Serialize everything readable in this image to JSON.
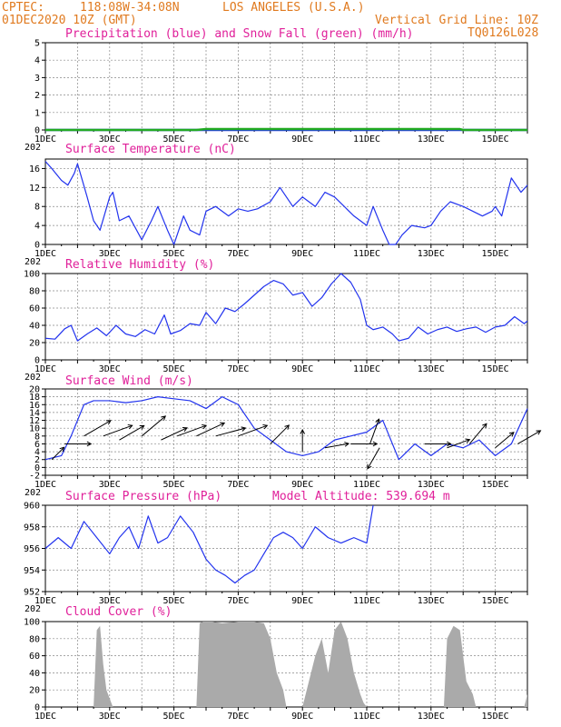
{
  "header": {
    "org": "CPTEC:",
    "coords": "118:08W-34:08N",
    "location": "LOS ANGELES (U.S.A.)",
    "datetime": "01DEC2020 10Z (GMT)",
    "grid_note": "Vertical Grid Line: 10Z",
    "code": "TQ0126L028",
    "model_altitude": "Model Altitude: 539.694 m"
  },
  "colors": {
    "header": "#e07a1f",
    "title": "#e0209a",
    "line": "#2233ee",
    "snow": "#22aa22",
    "cloud": "#aaaaaa"
  },
  "x_labels": [
    "1DEC",
    "3DEC",
    "5DEC",
    "7DEC",
    "9DEC",
    "11DEC",
    "13DEC",
    "15DEC"
  ],
  "x_label_days": [
    1,
    3,
    5,
    7,
    9,
    11,
    13,
    15
  ],
  "year_fragment": "202",
  "chart_data": [
    {
      "type": "line",
      "title": "Precipitation (blue) and Snow Fall (green) (mm/h)",
      "ylim": [
        0,
        5
      ],
      "yticks": [
        0,
        1,
        2,
        3,
        4,
        5
      ],
      "x": [
        1,
        2,
        3,
        4,
        5,
        5.7,
        6,
        7,
        8,
        9,
        10,
        11,
        12,
        13,
        13.9,
        14,
        15,
        16
      ],
      "series": [
        {
          "values": [
            0,
            0,
            0,
            0,
            0,
            0,
            0,
            0,
            0,
            0,
            0,
            0,
            0,
            0,
            0,
            0,
            0,
            0
          ],
          "color": "#2233ee"
        },
        {
          "values": [
            0,
            0,
            0,
            0,
            0,
            0,
            0.05,
            0.05,
            0.05,
            0.05,
            0.05,
            0.05,
            0.05,
            0.05,
            0.05,
            0,
            0,
            0
          ],
          "color": "#22aa22"
        }
      ],
      "grid": true
    },
    {
      "type": "line",
      "title": "Surface Temperature (nC)",
      "ylim": [
        0,
        18
      ],
      "yticks": [
        0,
        4,
        8,
        12,
        16
      ],
      "x": [
        1,
        1.2,
        1.5,
        1.7,
        1.9,
        2.0,
        2.3,
        2.5,
        2.7,
        3.0,
        3.1,
        3.3,
        3.6,
        4.0,
        4.3,
        4.5,
        4.8,
        5.0,
        5.3,
        5.5,
        5.8,
        6.0,
        6.3,
        6.7,
        7.0,
        7.3,
        7.6,
        8.0,
        8.3,
        8.7,
        9.0,
        9.4,
        9.7,
        10.0,
        10.3,
        10.6,
        11.0,
        11.2,
        11.5,
        11.7,
        11.9,
        12.1,
        12.4,
        12.8,
        13.0,
        13.3,
        13.6,
        14.0,
        14.3,
        14.6,
        14.9,
        15.0,
        15.2,
        15.5,
        15.8,
        16.0
      ],
      "series": [
        {
          "values": [
            17.5,
            16,
            13.5,
            12.5,
            15,
            17,
            10,
            5,
            3,
            10,
            11,
            5,
            6,
            1,
            5,
            8,
            3,
            0,
            6,
            3,
            2,
            7,
            8,
            6,
            7.5,
            7,
            7.5,
            9,
            12,
            8,
            10,
            8,
            11,
            10,
            8,
            6,
            4,
            8,
            3,
            0,
            0,
            2,
            4,
            3.5,
            4,
            7,
            9,
            8,
            7,
            6,
            7,
            8,
            6,
            14,
            11,
            12.5
          ],
          "color": "#2233ee"
        }
      ],
      "grid": true
    },
    {
      "type": "line",
      "title": "Relative Humidity (%)",
      "ylim": [
        0,
        100
      ],
      "yticks": [
        0,
        20,
        40,
        60,
        80,
        100
      ],
      "x": [
        1,
        1.3,
        1.6,
        1.8,
        2.0,
        2.3,
        2.6,
        2.9,
        3.2,
        3.5,
        3.8,
        4.1,
        4.4,
        4.7,
        4.9,
        5.2,
        5.5,
        5.8,
        6.0,
        6.3,
        6.6,
        6.9,
        7.2,
        7.5,
        7.8,
        8.1,
        8.4,
        8.7,
        9.0,
        9.3,
        9.6,
        9.9,
        10.2,
        10.5,
        10.8,
        11.0,
        11.2,
        11.5,
        11.8,
        12.0,
        12.3,
        12.6,
        12.9,
        13.2,
        13.5,
        13.8,
        14.1,
        14.4,
        14.7,
        15.0,
        15.3,
        15.6,
        15.9,
        16.0
      ],
      "series": [
        {
          "values": [
            25,
            24,
            36,
            40,
            22,
            30,
            37,
            28,
            40,
            30,
            27,
            35,
            30,
            52,
            30,
            34,
            42,
            40,
            55,
            42,
            60,
            56,
            65,
            75,
            85,
            92,
            88,
            75,
            78,
            62,
            72,
            88,
            100,
            90,
            70,
            40,
            35,
            38,
            30,
            22,
            25,
            38,
            30,
            35,
            38,
            33,
            36,
            38,
            32,
            38,
            40,
            50,
            42,
            45
          ],
          "color": "#2233ee"
        }
      ],
      "grid": true
    },
    {
      "type": "line",
      "title": "Surface Wind (m/s)",
      "ylim": [
        -2,
        20
      ],
      "yticks": [
        -2,
        0,
        2,
        4,
        6,
        8,
        10,
        12,
        14,
        16,
        18,
        20
      ],
      "x": [
        1,
        1.5,
        1.8,
        2.2,
        2.5,
        3,
        3.5,
        4,
        4.5,
        5,
        5.5,
        6,
        6.5,
        7,
        7.5,
        8,
        8.5,
        9,
        9.5,
        10,
        10.5,
        11,
        11.5,
        12,
        12.5,
        13,
        13.5,
        14,
        14.5,
        15,
        15.5,
        16
      ],
      "series": [
        {
          "values": [
            2,
            3,
            8,
            16,
            17,
            17,
            16.5,
            17,
            18,
            17.5,
            17,
            15,
            18,
            16,
            10,
            7,
            4,
            3,
            4,
            7,
            8,
            9,
            12,
            2,
            6,
            3,
            6,
            5,
            7,
            3,
            6,
            15
          ],
          "color": "#2233ee"
        }
      ],
      "grid": true
    },
    {
      "type": "line",
      "title": "Surface Pressure (hPa)",
      "ylim": [
        952,
        960
      ],
      "yticks": [
        952,
        954,
        956,
        958,
        960
      ],
      "x": [
        1,
        1.4,
        1.8,
        2.2,
        2.6,
        3.0,
        3.3,
        3.6,
        3.9,
        4.2,
        4.5,
        4.8,
        5.2,
        5.6,
        6.0,
        6.3,
        6.6,
        6.9,
        7.2,
        7.5,
        7.8,
        8.1,
        8.4,
        8.7,
        9.0,
        9.4,
        9.8,
        10.2,
        10.6,
        11.0,
        11.2
      ],
      "series": [
        {
          "values": [
            956,
            957,
            956,
            958.5,
            957,
            955.5,
            957,
            958,
            956,
            959,
            956.5,
            957,
            959,
            957.5,
            955,
            954,
            953.5,
            952.8,
            953.5,
            954,
            955.5,
            957,
            957.5,
            957,
            956,
            958,
            957,
            956.5,
            957,
            956.5,
            960
          ],
          "color": "#2233ee"
        }
      ],
      "grid": true
    },
    {
      "type": "area",
      "title": "Cloud Cover (%)",
      "ylim": [
        0,
        100
      ],
      "yticks": [
        0,
        20,
        40,
        60,
        80,
        100
      ],
      "x": [
        1,
        2.5,
        2.6,
        2.7,
        2.8,
        2.9,
        3.0,
        3.1,
        3.2,
        5.7,
        5.8,
        5.9,
        6.0,
        6.2,
        6.5,
        7.0,
        7.5,
        7.8,
        8.0,
        8.1,
        8.2,
        8.3,
        8.4,
        8.5,
        8.6,
        8.7,
        9.0,
        9.2,
        9.4,
        9.6,
        9.8,
        10.0,
        10.2,
        10.4,
        10.6,
        10.8,
        10.9,
        11.0,
        13.4,
        13.5,
        13.7,
        13.9,
        14.0,
        14.1,
        14.3,
        14.4,
        15.9,
        16.0
      ],
      "series": [
        {
          "values": [
            0,
            0,
            90,
            95,
            50,
            20,
            10,
            0,
            0,
            0,
            98,
            100,
            100,
            100,
            98,
            100,
            100,
            98,
            80,
            60,
            40,
            30,
            20,
            0,
            0,
            0,
            0,
            30,
            60,
            80,
            40,
            90,
            100,
            80,
            40,
            15,
            5,
            0,
            0,
            80,
            95,
            90,
            60,
            30,
            15,
            0,
            0,
            15
          ],
          "color": "#aaaaaa"
        }
      ],
      "grid": true
    }
  ],
  "wind_barbs": [
    {
      "day": 1.2,
      "speed": 2,
      "dir": 225
    },
    {
      "day": 1.6,
      "speed": 6,
      "dir": 270
    },
    {
      "day": 2.2,
      "speed": 8,
      "dir": 240
    },
    {
      "day": 2.8,
      "speed": 8,
      "dir": 250
    },
    {
      "day": 3.3,
      "speed": 7,
      "dir": 240
    },
    {
      "day": 4.0,
      "speed": 8,
      "dir": 230
    },
    {
      "day": 4.6,
      "speed": 7,
      "dir": 245
    },
    {
      "day": 5.1,
      "speed": 8,
      "dir": 250
    },
    {
      "day": 5.7,
      "speed": 8,
      "dir": 245
    },
    {
      "day": 6.3,
      "speed": 8,
      "dir": 255
    },
    {
      "day": 7.0,
      "speed": 8,
      "dir": 250
    },
    {
      "day": 8.0,
      "speed": 6,
      "dir": 225
    },
    {
      "day": 9.0,
      "speed": 4,
      "dir": 180
    },
    {
      "day": 9.7,
      "speed": 5,
      "dir": 260
    },
    {
      "day": 10.5,
      "speed": 6,
      "dir": 270
    },
    {
      "day": 11.1,
      "speed": 6,
      "dir": 200
    },
    {
      "day": 11.4,
      "speed": 5,
      "dir": 30
    },
    {
      "day": 12.8,
      "speed": 6,
      "dir": 270
    },
    {
      "day": 13.5,
      "speed": 5,
      "dir": 250
    },
    {
      "day": 14.2,
      "speed": 6,
      "dir": 220
    },
    {
      "day": 15.0,
      "speed": 5,
      "dir": 230
    },
    {
      "day": 15.7,
      "speed": 6,
      "dir": 240
    }
  ]
}
